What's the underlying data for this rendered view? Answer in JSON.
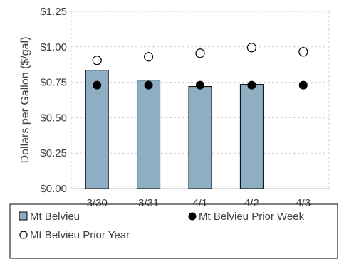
{
  "chart_data": {
    "type": "bar",
    "categories": [
      "3/30",
      "3/31",
      "4/1",
      "4/2",
      "4/3"
    ],
    "series": [
      {
        "name": "Mt Belvieu",
        "kind": "bar",
        "values": [
          0.835,
          0.765,
          0.72,
          0.735,
          null
        ],
        "color": "#8EAFC3"
      },
      {
        "name": "Mt Belvieu Prior Week",
        "kind": "marker-filled",
        "values": [
          0.73,
          0.73,
          0.73,
          0.73,
          0.73
        ],
        "color": "#000000"
      },
      {
        "name": "Mt Belvieu Prior Year",
        "kind": "marker-open",
        "values": [
          0.905,
          0.93,
          0.955,
          0.995,
          0.965
        ],
        "color": "#000000"
      }
    ],
    "title": "",
    "xlabel": "",
    "ylabel": "Dollars per Gallon ($/gal)",
    "ylim": [
      0,
      1.25
    ],
    "yticks": [
      0,
      0.25,
      0.5,
      0.75,
      1.0,
      1.25
    ],
    "ytick_labels": [
      "$0.00",
      "$0.25",
      "$0.50",
      "$0.75",
      "$1.00",
      "$1.25"
    ],
    "grid": "horizontal dashed",
    "legend_position": "bottom"
  }
}
